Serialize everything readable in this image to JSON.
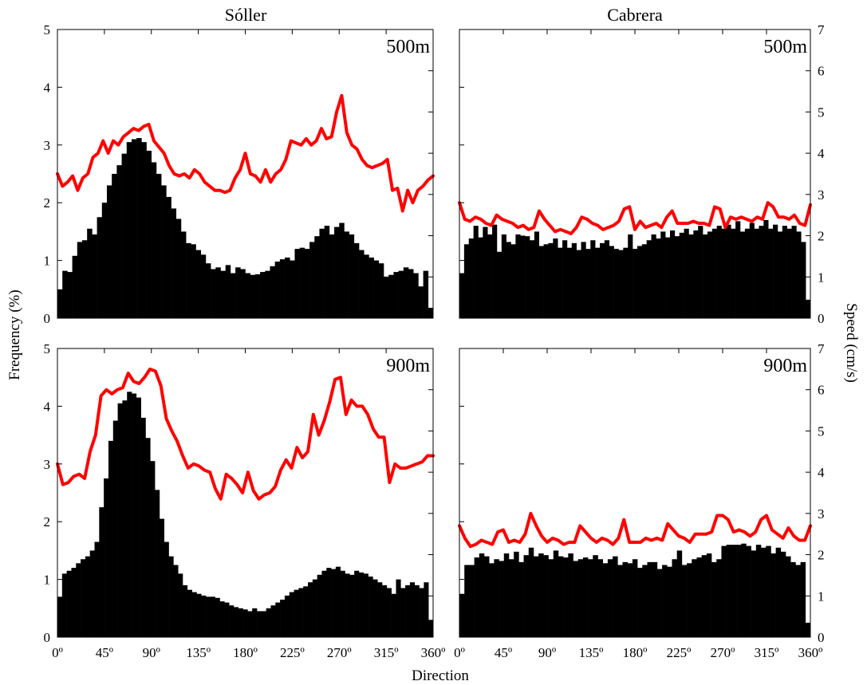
{
  "chart_data": {
    "type": "bar",
    "column_titles": [
      "Sóller",
      "Cabrera"
    ],
    "xlabel": "Direction",
    "ylabel_left": "Frequency (%)",
    "ylabel_right": "Speed (cm/s)",
    "x_tick_labels": [
      "0º",
      "45º",
      "90º",
      "135º",
      "180º",
      "225º",
      "270º",
      "315º",
      "360º"
    ],
    "x_ticks": [
      0,
      45,
      90,
      135,
      180,
      225,
      270,
      315,
      360
    ],
    "xlim": [
      0,
      360
    ],
    "ylim_frequency": [
      0,
      5
    ],
    "y_ticks_frequency": [
      0,
      1,
      2,
      3,
      4,
      5
    ],
    "ylim_speed": [
      0,
      7
    ],
    "y_ticks_speed": [
      0,
      1,
      2,
      3,
      4,
      5,
      6,
      7
    ],
    "bin_width_deg": 5,
    "bar_color": "#000000",
    "line_color": "#ff0000",
    "panels": [
      {
        "station": "Sóller",
        "depth_label": "500m",
        "frequency": [
          0.5,
          0.82,
          0.8,
          1.08,
          1.32,
          1.35,
          1.55,
          1.45,
          1.75,
          2.0,
          2.3,
          2.5,
          2.65,
          2.85,
          3.05,
          3.1,
          3.12,
          3.05,
          2.9,
          2.7,
          2.5,
          2.3,
          2.1,
          1.9,
          1.72,
          1.5,
          1.3,
          1.28,
          1.18,
          1.1,
          0.95,
          0.85,
          0.88,
          0.82,
          0.92,
          0.78,
          0.88,
          0.85,
          0.78,
          0.75,
          0.76,
          0.8,
          0.82,
          0.9,
          0.98,
          1.02,
          1.05,
          1.0,
          1.2,
          1.22,
          1.2,
          1.32,
          1.42,
          1.55,
          1.6,
          1.45,
          1.58,
          1.65,
          1.5,
          1.45,
          1.3,
          1.18,
          1.1,
          1.05,
          1.0,
          0.95,
          0.72,
          0.75,
          0.8,
          0.82,
          0.88,
          0.85,
          0.78,
          0.55,
          0.82,
          0.18
        ],
        "speed": [
          3.5,
          3.2,
          3.3,
          3.45,
          3.1,
          3.4,
          3.5,
          3.9,
          4.0,
          4.3,
          4.0,
          4.3,
          4.2,
          4.4,
          4.5,
          4.6,
          4.55,
          4.65,
          4.7,
          4.3,
          4.15,
          4.0,
          3.7,
          3.5,
          3.45,
          3.5,
          3.4,
          3.6,
          3.5,
          3.3,
          3.2,
          3.1,
          3.1,
          3.05,
          3.1,
          3.4,
          3.6,
          4.0,
          3.5,
          3.45,
          3.3,
          3.6,
          3.3,
          3.5,
          3.6,
          3.85,
          4.3,
          4.25,
          4.2,
          4.35,
          4.2,
          4.3,
          4.6,
          4.35,
          4.4,
          5.0,
          5.4,
          4.5,
          4.2,
          4.1,
          3.85,
          3.7,
          3.65,
          3.7,
          3.75,
          3.85,
          3.1,
          3.15,
          2.6,
          3.1,
          2.8,
          3.1,
          3.2,
          3.35,
          3.45
        ]
      },
      {
        "station": "Cabrera",
        "depth_label": "500m",
        "frequency": [
          0.78,
          1.28,
          1.38,
          1.6,
          1.4,
          1.58,
          1.45,
          1.62,
          1.15,
          1.45,
          1.32,
          1.28,
          1.45,
          1.43,
          1.42,
          1.35,
          1.5,
          1.25,
          1.28,
          1.3,
          1.38,
          1.22,
          1.35,
          1.22,
          1.3,
          1.18,
          1.32,
          1.2,
          1.35,
          1.22,
          1.3,
          1.35,
          1.25,
          1.2,
          1.18,
          1.22,
          1.45,
          1.2,
          1.25,
          1.28,
          1.35,
          1.45,
          1.38,
          1.5,
          1.4,
          1.52,
          1.42,
          1.48,
          1.55,
          1.45,
          1.52,
          1.6,
          1.45,
          1.5,
          1.55,
          1.6,
          1.55,
          1.62,
          1.55,
          1.68,
          1.5,
          1.55,
          1.65,
          1.55,
          1.6,
          1.7,
          1.55,
          1.62,
          1.5,
          1.6,
          1.55,
          1.6,
          1.5,
          1.32,
          0.32
        ],
        "speed": [
          2.8,
          2.4,
          2.35,
          2.45,
          2.4,
          2.3,
          2.25,
          2.5,
          2.4,
          2.35,
          2.3,
          2.2,
          2.25,
          2.15,
          2.2,
          2.6,
          2.4,
          2.25,
          2.1,
          2.15,
          2.1,
          2.05,
          2.2,
          2.45,
          2.4,
          2.3,
          2.25,
          2.15,
          2.2,
          2.25,
          2.35,
          2.65,
          2.7,
          2.15,
          2.35,
          2.2,
          2.25,
          2.3,
          2.2,
          2.45,
          2.6,
          2.3,
          2.3,
          2.3,
          2.35,
          2.3,
          2.3,
          2.25,
          2.7,
          2.65,
          2.2,
          2.45,
          2.4,
          2.45,
          2.4,
          2.35,
          2.45,
          2.4,
          2.8,
          2.7,
          2.45,
          2.45,
          2.4,
          2.5,
          2.3,
          2.25,
          2.75
        ]
      },
      {
        "station": "Sóller",
        "depth_label": "900m",
        "frequency": [
          0.7,
          1.1,
          1.15,
          1.2,
          1.28,
          1.35,
          1.4,
          1.5,
          1.65,
          2.25,
          2.75,
          3.4,
          3.75,
          4.05,
          4.1,
          4.25,
          4.22,
          4.15,
          3.8,
          3.45,
          3.05,
          2.55,
          2.05,
          1.65,
          1.4,
          1.25,
          1.1,
          0.9,
          0.82,
          0.78,
          0.75,
          0.72,
          0.7,
          0.7,
          0.68,
          0.62,
          0.6,
          0.55,
          0.52,
          0.5,
          0.48,
          0.45,
          0.5,
          0.45,
          0.45,
          0.5,
          0.55,
          0.6,
          0.65,
          0.72,
          0.78,
          0.82,
          0.85,
          0.88,
          0.95,
          1.0,
          1.08,
          1.15,
          1.2,
          1.18,
          1.22,
          1.15,
          1.1,
          1.08,
          1.15,
          1.12,
          1.1,
          1.05,
          1.0,
          0.95,
          0.9,
          0.85,
          0.75,
          1.0,
          0.85,
          0.9,
          0.95,
          0.9,
          0.85,
          0.95,
          0.3
        ],
        "speed": [
          4.2,
          3.7,
          3.75,
          3.9,
          3.95,
          3.85,
          4.5,
          4.9,
          5.85,
          6.0,
          5.9,
          6.0,
          6.05,
          6.4,
          6.2,
          6.15,
          6.3,
          6.5,
          6.45,
          6.1,
          5.3,
          5.0,
          4.75,
          4.4,
          4.1,
          4.2,
          4.15,
          4.05,
          4.0,
          3.6,
          3.35,
          3.95,
          3.85,
          3.7,
          3.5,
          4.0,
          3.55,
          3.35,
          3.45,
          3.5,
          3.65,
          4.05,
          4.3,
          4.1,
          4.6,
          4.35,
          4.5,
          5.4,
          4.9,
          5.25,
          5.7,
          6.25,
          6.3,
          5.4,
          5.75,
          5.6,
          5.6,
          5.4,
          5.05,
          4.85,
          4.85,
          3.75,
          4.2,
          4.1,
          4.1,
          4.15,
          4.2,
          4.25,
          4.4,
          4.4
        ]
      },
      {
        "station": "Cabrera",
        "depth_label": "900m",
        "frequency": [
          0.75,
          1.25,
          1.25,
          1.38,
          1.45,
          1.4,
          1.28,
          1.35,
          1.32,
          1.45,
          1.35,
          1.48,
          1.3,
          1.42,
          1.55,
          1.4,
          1.45,
          1.42,
          1.35,
          1.5,
          1.4,
          1.38,
          1.45,
          1.32,
          1.35,
          1.38,
          1.35,
          1.42,
          1.35,
          1.28,
          1.35,
          1.4,
          1.25,
          1.3,
          1.28,
          1.35,
          1.2,
          1.25,
          1.3,
          1.3,
          1.18,
          1.25,
          1.22,
          1.35,
          1.5,
          1.25,
          1.28,
          1.35,
          1.38,
          1.42,
          1.45,
          1.3,
          1.35,
          1.58,
          1.6,
          1.6,
          1.6,
          1.62,
          1.58,
          1.5,
          1.6,
          1.55,
          1.58,
          1.45,
          1.55,
          1.48,
          1.4,
          1.3,
          1.25,
          1.3,
          0.25
        ],
        "speed": [
          2.7,
          2.4,
          2.2,
          2.25,
          2.35,
          2.3,
          2.25,
          2.55,
          2.6,
          2.3,
          2.35,
          2.3,
          2.5,
          3.0,
          2.7,
          2.45,
          2.3,
          2.4,
          2.35,
          2.25,
          2.3,
          2.3,
          2.7,
          2.55,
          2.4,
          2.3,
          2.4,
          2.35,
          2.25,
          2.4,
          2.85,
          2.3,
          2.3,
          2.3,
          2.4,
          2.35,
          2.4,
          2.35,
          2.75,
          2.6,
          2.45,
          2.4,
          2.3,
          2.5,
          2.5,
          2.5,
          2.55,
          2.95,
          2.95,
          2.85,
          2.55,
          2.6,
          2.55,
          2.45,
          2.55,
          2.85,
          2.95,
          2.6,
          2.5,
          2.4,
          2.65,
          2.45,
          2.35,
          2.35,
          2.7
        ]
      }
    ]
  }
}
